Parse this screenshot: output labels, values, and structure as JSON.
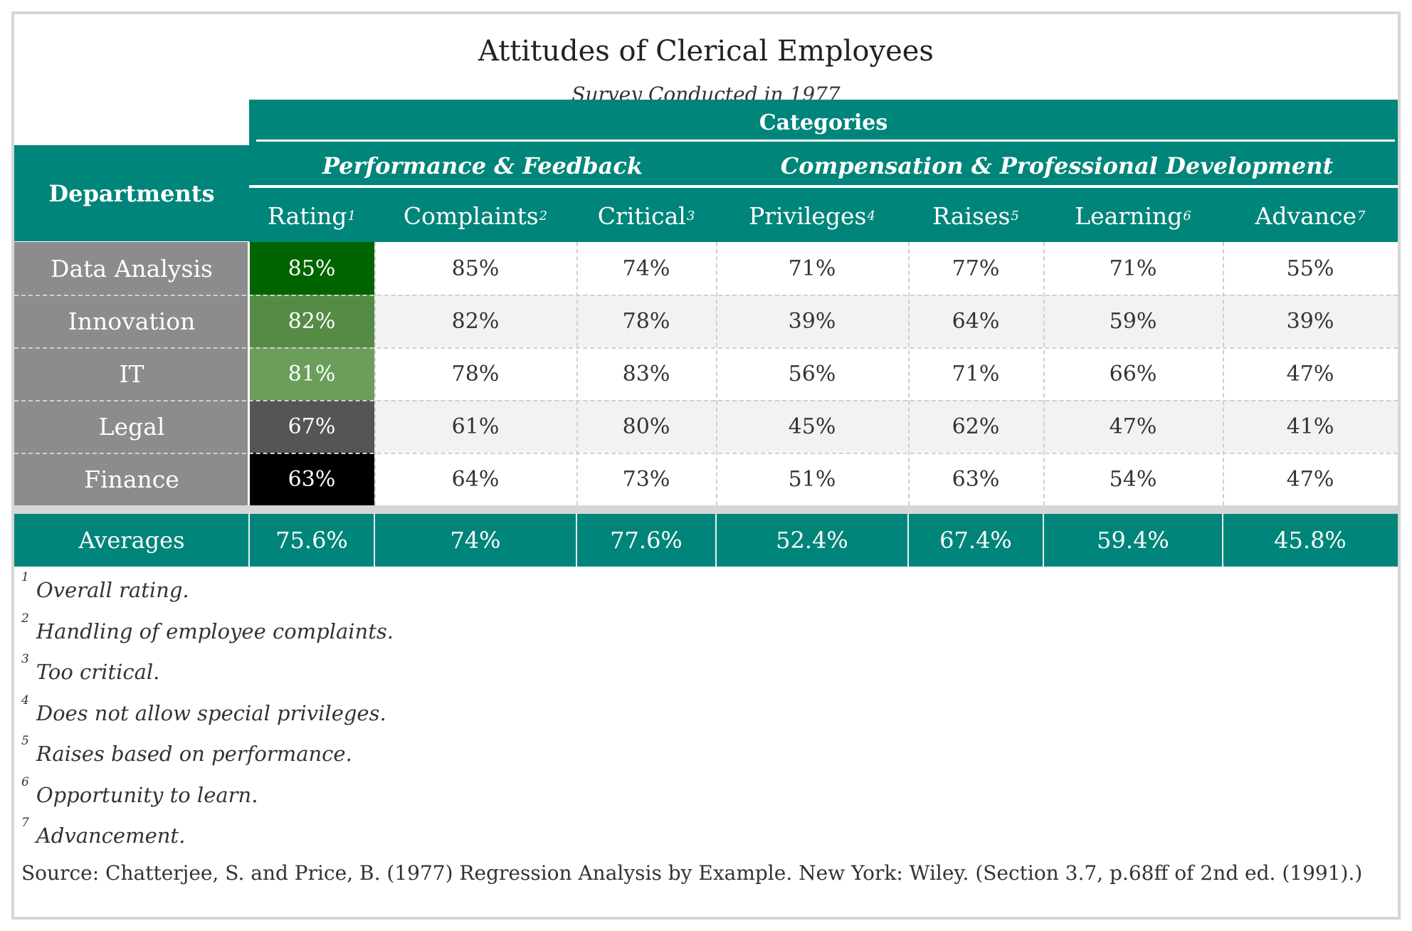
{
  "chart_data": {
    "type": "table",
    "title": "Attitudes of Clerical Employees",
    "subtitle": "Survey Conducted in 1977",
    "spanner": "Categories",
    "row_header": "Departments",
    "groups": [
      {
        "label": "Performance & Feedback",
        "columns": [
          "Rating",
          "Complaints",
          "Critical"
        ]
      },
      {
        "label": "Compensation & Professional Development",
        "columns": [
          "Privileges",
          "Raises",
          "Learning",
          "Advance"
        ]
      }
    ],
    "columns": [
      {
        "label": "Rating",
        "note": "1"
      },
      {
        "label": "Complaints",
        "note": "2"
      },
      {
        "label": "Critical",
        "note": "3"
      },
      {
        "label": "Privileges",
        "note": "4"
      },
      {
        "label": "Raises",
        "note": "5"
      },
      {
        "label": "Learning",
        "note": "6"
      },
      {
        "label": "Advance",
        "note": "7"
      }
    ],
    "rows": [
      {
        "department": "Data Analysis",
        "values": [
          "85%",
          "85%",
          "74%",
          "71%",
          "77%",
          "71%",
          "55%"
        ],
        "rating_color": "#006400"
      },
      {
        "department": "Innovation",
        "values": [
          "82%",
          "82%",
          "78%",
          "39%",
          "64%",
          "59%",
          "39%"
        ],
        "rating_color": "#558b45"
      },
      {
        "department": "IT",
        "values": [
          "81%",
          "78%",
          "83%",
          "56%",
          "71%",
          "66%",
          "47%"
        ],
        "rating_color": "#6a9e5a"
      },
      {
        "department": "Legal",
        "values": [
          "67%",
          "61%",
          "80%",
          "45%",
          "62%",
          "47%",
          "41%"
        ],
        "rating_color": "#555555"
      },
      {
        "department": "Finance",
        "values": [
          "63%",
          "64%",
          "73%",
          "51%",
          "63%",
          "54%",
          "47%"
        ],
        "rating_color": "#000000"
      }
    ],
    "averages": {
      "label": "Averages",
      "values": [
        "75.6%",
        "74%",
        "77.6%",
        "52.4%",
        "67.4%",
        "59.4%",
        "45.8%"
      ]
    },
    "footnotes": [
      {
        "mark": "1",
        "text": "Overall rating."
      },
      {
        "mark": "2",
        "text": "Handling of employee complaints."
      },
      {
        "mark": "3",
        "text": "Too critical."
      },
      {
        "mark": "4",
        "text": "Does not allow special privileges."
      },
      {
        "mark": "5",
        "text": "Raises based on performance."
      },
      {
        "mark": "6",
        "text": "Opportunity to learn."
      },
      {
        "mark": "7",
        "text": "Advancement."
      }
    ],
    "source": "Source: Chatterjee, S. and Price, B. (1977) Regression Analysis by Example. New York: Wiley. (Section 3.7, p.68ff of 2nd ed. (1991).)",
    "colors": {
      "header": "#00857a",
      "row_header": "#8c8c8c",
      "alt_row": "#f2f2f2"
    }
  }
}
